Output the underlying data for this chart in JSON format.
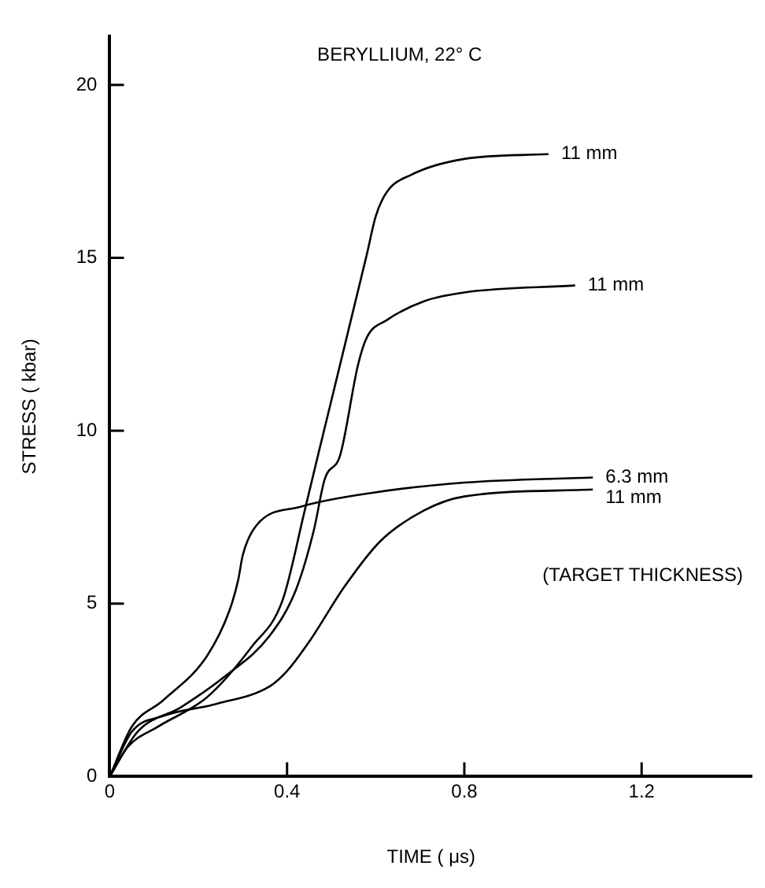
{
  "chart_data": {
    "type": "line",
    "title": "BERYLLIUM, 22° C",
    "xlabel": "TIME ( μs)",
    "ylabel": "STRESS ( kbar)",
    "annotations": [
      "(TARGET THICKNESS)"
    ],
    "xlim": [
      0,
      1.45
    ],
    "ylim": [
      0,
      21.4
    ],
    "xticks": [
      0,
      0.4,
      0.8,
      1.2
    ],
    "yticks": [
      0,
      5,
      10,
      15,
      20
    ],
    "grid": false,
    "legend": false,
    "marker": "none",
    "line_style": "solid",
    "series": [
      {
        "name": "11 mm",
        "color": "#000000",
        "x": [
          0,
          0.04,
          0.11,
          0.22,
          0.32,
          0.39,
          0.44,
          0.47,
          0.58,
          0.6,
          0.625,
          0.68,
          0.8,
          0.99
        ],
        "values": [
          0,
          0.85,
          1.45,
          2.3,
          3.75,
          5.1,
          7.7,
          9.3,
          15.1,
          16.2,
          16.9,
          17.4,
          17.86,
          18.0
        ]
      },
      {
        "name": "11 mm",
        "color": "#000000",
        "x": [
          0,
          0.063,
          0.16,
          0.26,
          0.36,
          0.42,
          0.46,
          0.485,
          0.52,
          0.56,
          0.58,
          0.625,
          0.71,
          0.8,
          1.05
        ],
        "values": [
          0,
          1.3,
          2.0,
          2.9,
          4.06,
          5.4,
          7.1,
          8.6,
          9.3,
          11.9,
          12.7,
          13.2,
          13.75,
          14.0,
          14.2
        ]
      },
      {
        "name": "6.3 mm",
        "color": "#000000",
        "x": [
          0,
          0.05,
          0.12,
          0.22,
          0.27,
          0.29,
          0.3,
          0.33,
          0.43,
          0.59,
          0.8,
          1.09
        ],
        "values": [
          0,
          1.45,
          2.2,
          3.5,
          4.8,
          5.7,
          6.4,
          7.25,
          7.8,
          8.2,
          8.5,
          8.65
        ]
      },
      {
        "name": "11 mm",
        "color": "#000000",
        "x": [
          0,
          0.05,
          0.12,
          0.24,
          0.36,
          0.4,
          0.45,
          0.53,
          0.61,
          0.71,
          0.8,
          1.09
        ],
        "values": [
          0,
          1.3,
          1.75,
          2.1,
          2.6,
          3.05,
          3.9,
          5.5,
          6.8,
          7.7,
          8.1,
          8.3
        ]
      }
    ]
  }
}
